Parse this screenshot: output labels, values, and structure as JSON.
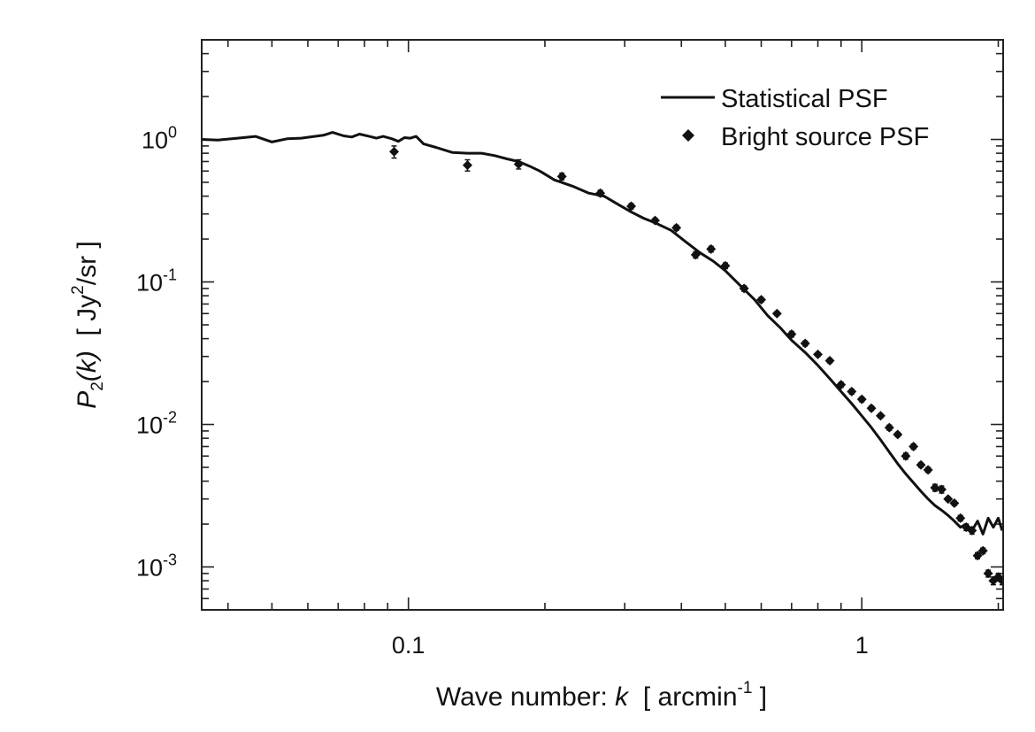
{
  "chart_data": {
    "type": "line",
    "title": "",
    "xscale": "log",
    "yscale": "log",
    "xlim": [
      0.035,
      2.05
    ],
    "ylim": [
      0.0005,
      5
    ],
    "xlabel": {
      "prefix": "Wave number: ",
      "var": "k",
      "unit_open": "  [ arcmin",
      "unit_exp": "-1",
      "unit_close": " ]"
    },
    "ylabel": {
      "var": "P",
      "sub": "2",
      "arg": "(k)",
      "unit_open": "  [ Jy",
      "unit_exp": "2",
      "unit_close": "/sr ]"
    },
    "x_ticks": [
      {
        "value": 0.1,
        "label": "0.1"
      },
      {
        "value": 1,
        "label": "1"
      }
    ],
    "y_ticks": [
      {
        "value": 1,
        "base": "10",
        "exp": "0"
      },
      {
        "value": 0.1,
        "base": "10",
        "exp": "-1"
      },
      {
        "value": 0.01,
        "base": "10",
        "exp": "-2"
      },
      {
        "value": 0.001,
        "base": "10",
        "exp": "-3"
      }
    ],
    "legend": {
      "position": "top-right",
      "entries": [
        {
          "label": "Statistical PSF",
          "style": "line"
        },
        {
          "label": "Bright source PSF",
          "style": "diamond"
        }
      ]
    },
    "series": [
      {
        "name": "Statistical PSF",
        "style": "line",
        "x": [
          0.035,
          0.038,
          0.042,
          0.046,
          0.05,
          0.054,
          0.058,
          0.062,
          0.065,
          0.068,
          0.072,
          0.075,
          0.078,
          0.082,
          0.085,
          0.088,
          0.092,
          0.095,
          0.098,
          0.101,
          0.104,
          0.108,
          0.115,
          0.125,
          0.135,
          0.145,
          0.155,
          0.165,
          0.175,
          0.185,
          0.195,
          0.21,
          0.23,
          0.25,
          0.27,
          0.29,
          0.31,
          0.33,
          0.35,
          0.38,
          0.41,
          0.44,
          0.47,
          0.5,
          0.54,
          0.58,
          0.62,
          0.66,
          0.7,
          0.75,
          0.8,
          0.85,
          0.9,
          0.95,
          1.0,
          1.05,
          1.1,
          1.15,
          1.2,
          1.25,
          1.3,
          1.35,
          1.4,
          1.45,
          1.5,
          1.55,
          1.6,
          1.65,
          1.7,
          1.75,
          1.8,
          1.85,
          1.9,
          1.95,
          2.0,
          2.04
        ],
        "y": [
          1.0,
          0.99,
          1.02,
          1.05,
          0.96,
          1.01,
          1.02,
          1.05,
          1.07,
          1.12,
          1.06,
          1.04,
          1.09,
          1.05,
          1.02,
          1.05,
          1.01,
          0.97,
          1.03,
          1.02,
          1.05,
          0.93,
          0.88,
          0.81,
          0.8,
          0.8,
          0.77,
          0.73,
          0.7,
          0.65,
          0.6,
          0.52,
          0.47,
          0.42,
          0.4,
          0.35,
          0.31,
          0.28,
          0.26,
          0.23,
          0.19,
          0.16,
          0.14,
          0.12,
          0.094,
          0.075,
          0.058,
          0.048,
          0.039,
          0.032,
          0.026,
          0.021,
          0.017,
          0.014,
          0.0115,
          0.0095,
          0.0078,
          0.0064,
          0.0053,
          0.0045,
          0.0039,
          0.0034,
          0.003,
          0.0027,
          0.0025,
          0.0023,
          0.0021,
          0.0019,
          0.002,
          0.0018,
          0.0021,
          0.0017,
          0.0022,
          0.0019,
          0.0022,
          0.0018
        ]
      },
      {
        "name": "Bright source PSF",
        "style": "diamond",
        "x": [
          0.093,
          0.135,
          0.175,
          0.218,
          0.265,
          0.31,
          0.35,
          0.39,
          0.43,
          0.465,
          0.5,
          0.55,
          0.6,
          0.65,
          0.7,
          0.75,
          0.8,
          0.85,
          0.9,
          0.95,
          1.0,
          1.05,
          1.1,
          1.15,
          1.2,
          1.25,
          1.3,
          1.35,
          1.4,
          1.45,
          1.5,
          1.55,
          1.6,
          1.65,
          1.7,
          1.75,
          1.8,
          1.85,
          1.9,
          1.95,
          2.0,
          2.04
        ],
        "y": [
          0.82,
          0.66,
          0.67,
          0.55,
          0.42,
          0.34,
          0.27,
          0.24,
          0.155,
          0.17,
          0.13,
          0.09,
          0.075,
          0.06,
          0.043,
          0.037,
          0.031,
          0.028,
          0.019,
          0.017,
          0.015,
          0.013,
          0.0115,
          0.0095,
          0.0085,
          0.006,
          0.007,
          0.0052,
          0.0048,
          0.0036,
          0.0035,
          0.003,
          0.0028,
          0.0022,
          0.0019,
          0.0018,
          0.0012,
          0.0013,
          0.0009,
          0.0008,
          0.00085,
          0.0008
        ],
        "yerr": [
          0.08,
          0.06,
          0.05,
          0.03,
          0.02,
          0.015,
          0.01,
          0.01,
          0.008,
          0.008,
          0.006,
          0.004,
          0.003,
          0.002,
          0.002,
          0.0015,
          0.001,
          0.001,
          0.0008,
          0.0007,
          0.0006,
          0.0005,
          0.0004,
          0.0004,
          0.0003,
          0.0003,
          0.0003,
          0.0002,
          0.0002,
          0.0002,
          0.0002,
          0.0001,
          0.0001,
          0.0001,
          0.0001,
          0.0001,
          6e-05,
          6e-05,
          5e-05,
          5e-05,
          5e-05,
          5e-05
        ]
      }
    ]
  }
}
